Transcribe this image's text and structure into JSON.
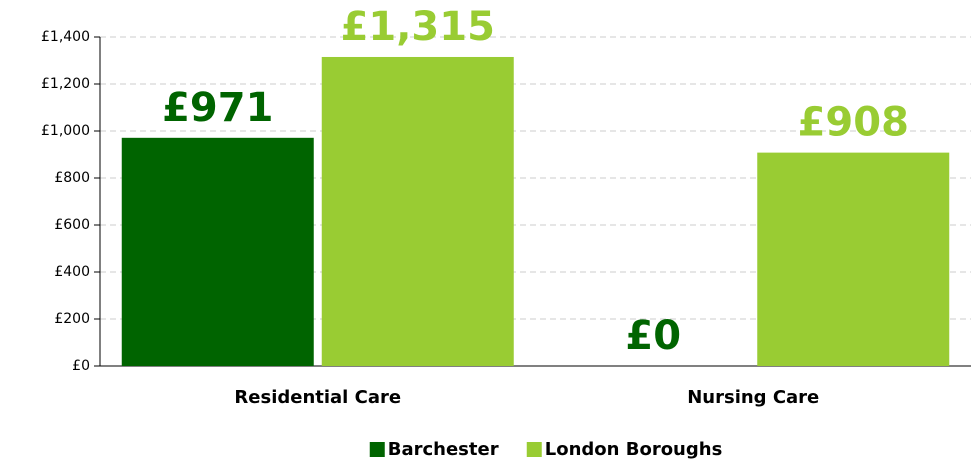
{
  "chart_data": {
    "type": "bar",
    "categories": [
      "Residential Care",
      "Nursing Care"
    ],
    "series": [
      {
        "name": "Barchester",
        "color": "#006400",
        "values": [
          971,
          0
        ],
        "value_labels": [
          "£971",
          "£0"
        ]
      },
      {
        "name": "London Boroughs",
        "color": "#99cc33",
        "values": [
          1315,
          908
        ],
        "value_labels": [
          "£1,315",
          "£908"
        ]
      }
    ],
    "ylim": [
      0,
      1400
    ],
    "yticks": [
      {
        "value": 0,
        "label": "£0"
      },
      {
        "value": 200,
        "label": "£200"
      },
      {
        "value": 400,
        "label": "£400"
      },
      {
        "value": 600,
        "label": "£600"
      },
      {
        "value": 800,
        "label": "£800"
      },
      {
        "value": 1000,
        "label": "£1,000"
      },
      {
        "value": 1200,
        "label": "£1,200"
      },
      {
        "value": 1400,
        "label": "£1,400"
      }
    ],
    "grid": true,
    "legend": "bottom"
  }
}
